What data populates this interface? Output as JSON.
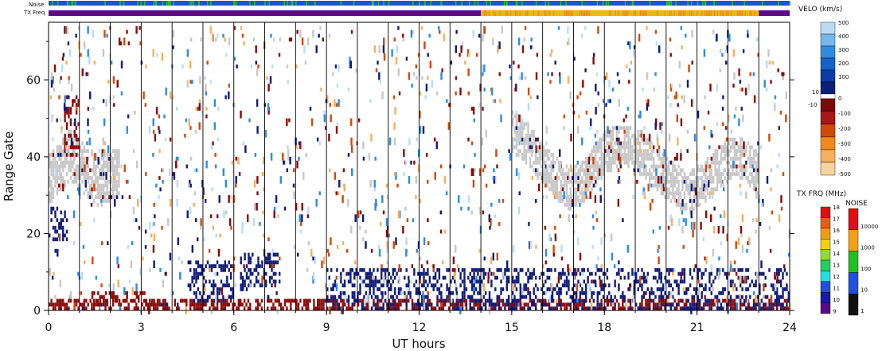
{
  "chart_data": {
    "type": "heatmap",
    "title": "",
    "xlabel": "UT hours",
    "ylabel": "Range Gate",
    "xlim": [
      0,
      24
    ],
    "ylim": [
      0,
      75
    ],
    "x_ticks": [
      "0",
      "3",
      "6",
      "9",
      "12",
      "15",
      "18",
      "21",
      "24"
    ],
    "y_ticks": [
      "0",
      "20",
      "40",
      "60"
    ],
    "x_tick_values": [
      0,
      3,
      6,
      9,
      12,
      15,
      18,
      21,
      24
    ],
    "y_tick_values": [
      0,
      20,
      40,
      60
    ],
    "scan_boundaries_ut": [
      1,
      2,
      3,
      4,
      5,
      6,
      7,
      8,
      9,
      10,
      11,
      12,
      13,
      14,
      15,
      16,
      17,
      18,
      19,
      20,
      21,
      22,
      23
    ],
    "strips": {
      "noise_label": "Noise",
      "txfreq_label": "TX Freq",
      "txfreq_segments": [
        {
          "from": 0,
          "to": 14.0,
          "color": "#5a0a8c"
        },
        {
          "from": 14.0,
          "to": 23.0,
          "color": "#f0b800"
        },
        {
          "from": 23.0,
          "to": 24,
          "color": "#5a0a8c"
        }
      ]
    },
    "velocity_scale": {
      "title": "VELO (km/s)",
      "labels_top": [
        "500",
        "400",
        "300",
        "200",
        "100",
        "10"
      ],
      "labels_bottom": [
        "-10",
        "-100",
        "-200",
        "-300",
        "-400",
        "-500"
      ],
      "mid_label": "0",
      "colors_positive": [
        "#b9dcf5",
        "#74b8ec",
        "#2f8be0",
        "#1463c9",
        "#0a3ca8",
        "#08207a"
      ],
      "colors_negative": [
        "#7a0a0a",
        "#a81818",
        "#d04a0a",
        "#f08a1a",
        "#f5b060",
        "#f7d3a0"
      ]
    },
    "txfreq_scale": {
      "title": "TX FRQ (MHz)",
      "labels": [
        "18",
        "17",
        "16",
        "15",
        "14",
        "13",
        "12",
        "11",
        "10",
        "9"
      ],
      "colors": [
        "#e01010",
        "#f05a10",
        "#f59a10",
        "#f0d010",
        "#90e020",
        "#20d060",
        "#20e0e0",
        "#2050e0",
        "#1818b0",
        "#5a0a8c"
      ]
    },
    "noise_scale": {
      "title": "NOISE",
      "labels": [
        "10000",
        "1000",
        "100",
        "10",
        "1"
      ],
      "colors": [
        "#e01010",
        "#f5a010",
        "#20c020",
        "#2050e0",
        "#111111"
      ]
    },
    "series": [
      {
        "kind": "ground_scatter",
        "color": "#c8c8c8",
        "regions": [
          {
            "x0": 15.0,
            "x1": 23.0,
            "center": [
              46,
              44,
              40,
              36,
              33,
              31,
              33,
              37,
              41,
              42,
              42,
              40,
              37,
              34,
              32,
              30,
              32,
              35,
              38,
              40,
              38,
              35
            ],
            "half_width": 5
          },
          {
            "x0": 0.0,
            "x1": 2.3,
            "center": [
              34,
              36,
              40,
              37,
              35,
              33,
              34,
              36
            ],
            "half_width": 6
          }
        ]
      },
      {
        "kind": "ionospheric_negative",
        "color": "#8a0a0a",
        "regions": [
          {
            "x0": 0.0,
            "x1": 24.0,
            "gates": [
              0,
              2
            ]
          },
          {
            "x0": 1.2,
            "x1": 3.5,
            "gates": [
              2,
              4
            ]
          },
          {
            "x0": 0.5,
            "x1": 1.0,
            "gates": [
              40,
              55
            ]
          }
        ]
      },
      {
        "kind": "ionospheric_positive",
        "color": "#101c78",
        "regions": [
          {
            "x0": 4.5,
            "x1": 6.0,
            "gates": [
              2,
              12
            ]
          },
          {
            "x0": 6.2,
            "x1": 7.5,
            "gates": [
              5,
              14
            ]
          },
          {
            "x0": 9.0,
            "x1": 24.0,
            "gates": [
              0,
              10
            ]
          },
          {
            "x0": 0.0,
            "x1": 0.6,
            "gates": [
              18,
              26
            ]
          }
        ]
      }
    ]
  }
}
